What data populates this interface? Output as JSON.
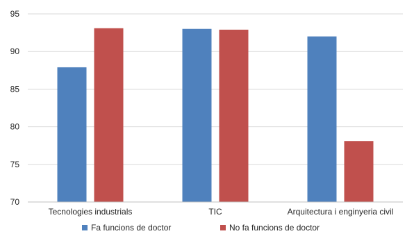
{
  "chart_data": {
    "type": "bar",
    "title": "",
    "xlabel": "",
    "ylabel": "",
    "ylim": [
      70,
      95
    ],
    "yticks": [
      70,
      75,
      80,
      85,
      90,
      95
    ],
    "grid": true,
    "legend": "bottom",
    "categories": [
      "Tecnologies industrials",
      "TIC",
      "Arquitectura i enginyeria civil"
    ],
    "series": [
      {
        "name": "Fa funcions de doctor",
        "color": "#4F81BD",
        "values": [
          87.9,
          93.0,
          92.0
        ]
      },
      {
        "name": "No fa funcions de doctor",
        "color": "#C0504D",
        "values": [
          93.1,
          92.9,
          78.1
        ]
      }
    ]
  }
}
